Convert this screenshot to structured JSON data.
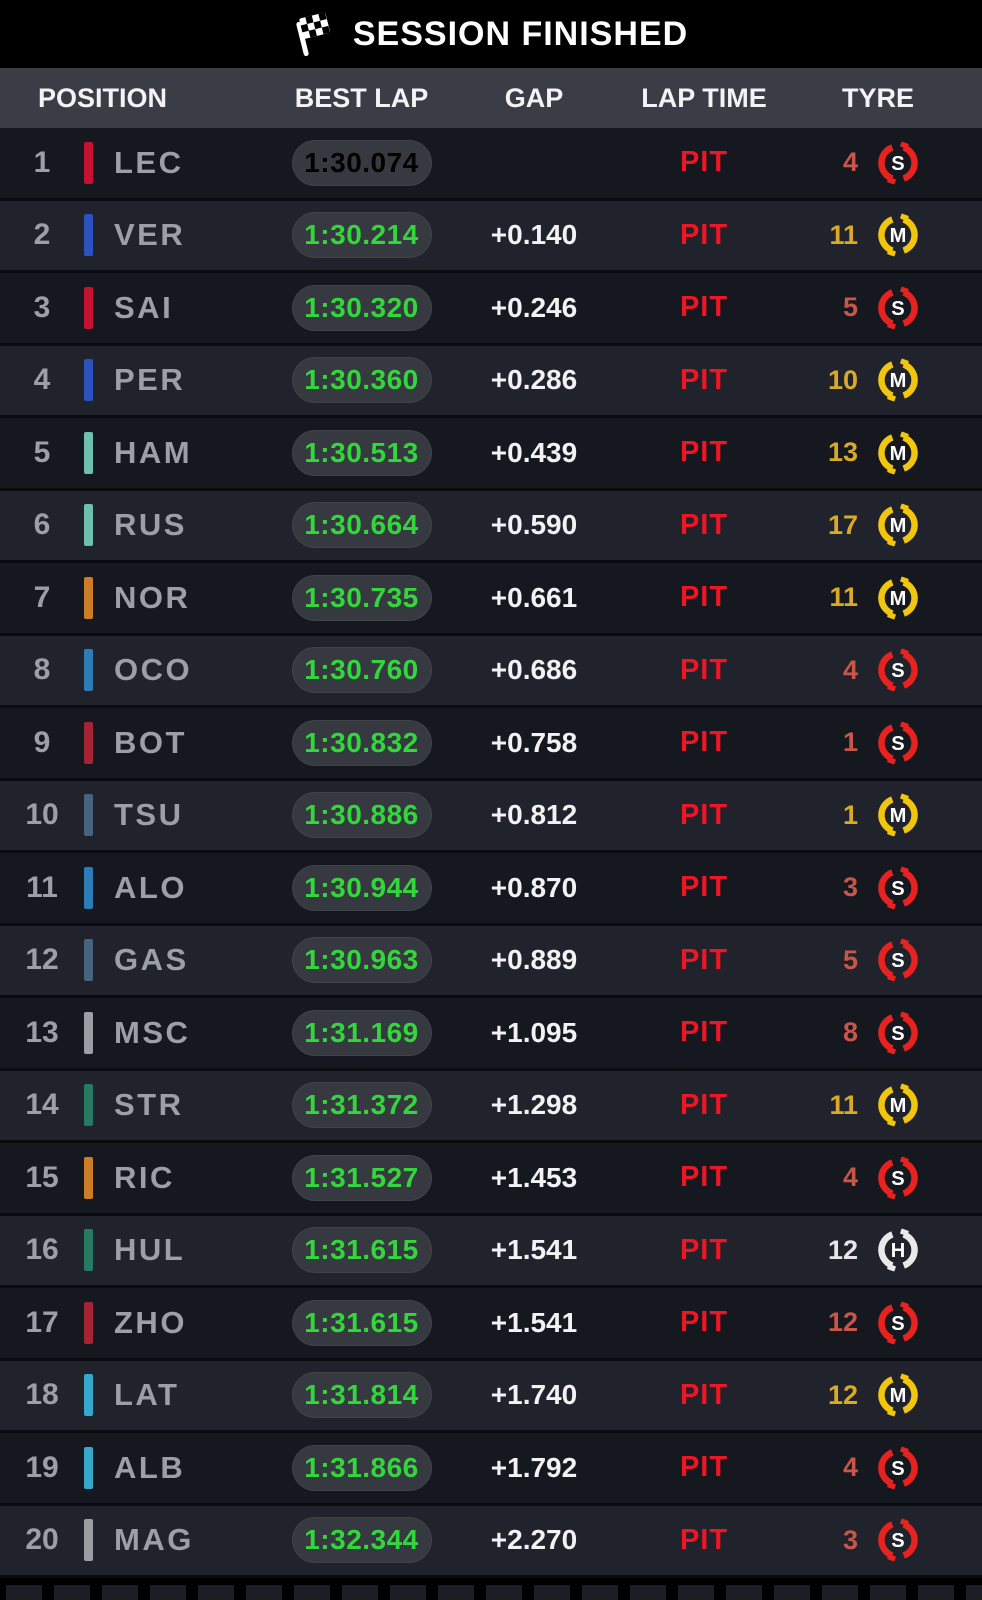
{
  "title": "SESSION FINISHED",
  "columns": {
    "position": "POSITION",
    "best_lap": "BEST LAP",
    "gap": "GAP",
    "lap_time": "LAP TIME",
    "tyre": "TYRE"
  },
  "colors": {
    "fastest_lap": "#e135ec",
    "personal_best": "#33d63c",
    "pit_red": "#ee1525",
    "text_gray": "#9ba0a8",
    "gap_white": "#f2f2f4",
    "pill_bg": "#36393f",
    "row_odd": "#16181f",
    "row_even": "#20232b",
    "header_bg": "#3a3d45"
  },
  "tyres": {
    "S": {
      "name": "soft",
      "ring": "#e8231f",
      "laps_text": "#c8574a",
      "letter": "S"
    },
    "M": {
      "name": "medium",
      "ring": "#f2c50e",
      "laps_text": "#d9a929",
      "letter": "M"
    },
    "H": {
      "name": "hard",
      "ring": "#e9e9e7",
      "laps_text": "#e6e6e6",
      "letter": "H"
    }
  },
  "rows": [
    {
      "position": "1",
      "driver": "LEC",
      "team": "ferrari",
      "team_color": "#c51230",
      "best_lap": "1:30.074",
      "best_lap_color": "fastest",
      "gap": "",
      "lap_time": "PIT",
      "tyre": "S",
      "tyre_laps": "4"
    },
    {
      "position": "2",
      "driver": "VER",
      "team": "red-bull",
      "team_color": "#2b52c0",
      "best_lap": "1:30.214",
      "best_lap_color": "personal_best",
      "gap": "+0.140",
      "lap_time": "PIT",
      "tyre": "M",
      "tyre_laps": "11"
    },
    {
      "position": "3",
      "driver": "SAI",
      "team": "ferrari",
      "team_color": "#c51230",
      "best_lap": "1:30.320",
      "best_lap_color": "personal_best",
      "gap": "+0.246",
      "lap_time": "PIT",
      "tyre": "S",
      "tyre_laps": "5"
    },
    {
      "position": "4",
      "driver": "PER",
      "team": "red-bull",
      "team_color": "#2b52c0",
      "best_lap": "1:30.360",
      "best_lap_color": "personal_best",
      "gap": "+0.286",
      "lap_time": "PIT",
      "tyre": "M",
      "tyre_laps": "10"
    },
    {
      "position": "5",
      "driver": "HAM",
      "team": "mercedes",
      "team_color": "#6fbfae",
      "best_lap": "1:30.513",
      "best_lap_color": "personal_best",
      "gap": "+0.439",
      "lap_time": "PIT",
      "tyre": "M",
      "tyre_laps": "13"
    },
    {
      "position": "6",
      "driver": "RUS",
      "team": "mercedes",
      "team_color": "#6fbfae",
      "best_lap": "1:30.664",
      "best_lap_color": "personal_best",
      "gap": "+0.590",
      "lap_time": "PIT",
      "tyre": "M",
      "tyre_laps": "17"
    },
    {
      "position": "7",
      "driver": "NOR",
      "team": "mclaren",
      "team_color": "#cd7d28",
      "best_lap": "1:30.735",
      "best_lap_color": "personal_best",
      "gap": "+0.661",
      "lap_time": "PIT",
      "tyre": "M",
      "tyre_laps": "11"
    },
    {
      "position": "8",
      "driver": "OCO",
      "team": "alpine",
      "team_color": "#2d7cb8",
      "best_lap": "1:30.760",
      "best_lap_color": "personal_best",
      "gap": "+0.686",
      "lap_time": "PIT",
      "tyre": "S",
      "tyre_laps": "4"
    },
    {
      "position": "9",
      "driver": "BOT",
      "team": "alfa-romeo",
      "team_color": "#a42334",
      "best_lap": "1:30.832",
      "best_lap_color": "personal_best",
      "gap": "+0.758",
      "lap_time": "PIT",
      "tyre": "S",
      "tyre_laps": "1"
    },
    {
      "position": "10",
      "driver": "TSU",
      "team": "alphatauri",
      "team_color": "#47647f",
      "best_lap": "1:30.886",
      "best_lap_color": "personal_best",
      "gap": "+0.812",
      "lap_time": "PIT",
      "tyre": "M",
      "tyre_laps": "1"
    },
    {
      "position": "11",
      "driver": "ALO",
      "team": "alpine",
      "team_color": "#2d7cb8",
      "best_lap": "1:30.944",
      "best_lap_color": "personal_best",
      "gap": "+0.870",
      "lap_time": "PIT",
      "tyre": "S",
      "tyre_laps": "3"
    },
    {
      "position": "12",
      "driver": "GAS",
      "team": "alphatauri",
      "team_color": "#47647f",
      "best_lap": "1:30.963",
      "best_lap_color": "personal_best",
      "gap": "+0.889",
      "lap_time": "PIT",
      "tyre": "S",
      "tyre_laps": "5"
    },
    {
      "position": "13",
      "driver": "MSC",
      "team": "haas",
      "team_color": "#9b9ea3",
      "best_lap": "1:31.169",
      "best_lap_color": "personal_best",
      "gap": "+1.095",
      "lap_time": "PIT",
      "tyre": "S",
      "tyre_laps": "8"
    },
    {
      "position": "14",
      "driver": "STR",
      "team": "aston-martin",
      "team_color": "#267a64",
      "best_lap": "1:31.372",
      "best_lap_color": "personal_best",
      "gap": "+1.298",
      "lap_time": "PIT",
      "tyre": "M",
      "tyre_laps": "11"
    },
    {
      "position": "15",
      "driver": "RIC",
      "team": "mclaren",
      "team_color": "#cd7d28",
      "best_lap": "1:31.527",
      "best_lap_color": "personal_best",
      "gap": "+1.453",
      "lap_time": "PIT",
      "tyre": "S",
      "tyre_laps": "4"
    },
    {
      "position": "16",
      "driver": "HUL",
      "team": "aston-martin",
      "team_color": "#267a64",
      "best_lap": "1:31.615",
      "best_lap_color": "personal_best",
      "gap": "+1.541",
      "lap_time": "PIT",
      "tyre": "H",
      "tyre_laps": "12"
    },
    {
      "position": "17",
      "driver": "ZHO",
      "team": "alfa-romeo",
      "team_color": "#a42334",
      "best_lap": "1:31.615",
      "best_lap_color": "personal_best",
      "gap": "+1.541",
      "lap_time": "PIT",
      "tyre": "S",
      "tyre_laps": "12"
    },
    {
      "position": "18",
      "driver": "LAT",
      "team": "williams",
      "team_color": "#35a8cc",
      "best_lap": "1:31.814",
      "best_lap_color": "personal_best",
      "gap": "+1.740",
      "lap_time": "PIT",
      "tyre": "M",
      "tyre_laps": "12"
    },
    {
      "position": "19",
      "driver": "ALB",
      "team": "williams",
      "team_color": "#35a8cc",
      "best_lap": "1:31.866",
      "best_lap_color": "personal_best",
      "gap": "+1.792",
      "lap_time": "PIT",
      "tyre": "S",
      "tyre_laps": "4"
    },
    {
      "position": "20",
      "driver": "MAG",
      "team": "haas",
      "team_color": "#9b9ea3",
      "best_lap": "1:32.344",
      "best_lap_color": "personal_best",
      "gap": "+2.270",
      "lap_time": "PIT",
      "tyre": "S",
      "tyre_laps": "3"
    }
  ]
}
